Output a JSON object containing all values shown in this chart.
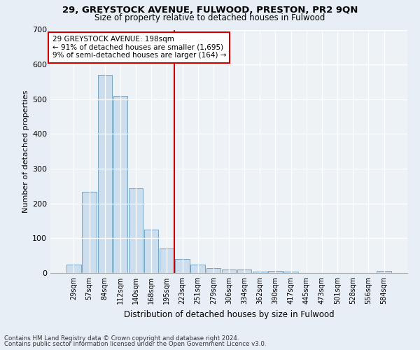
{
  "title1": "29, GREYSTOCK AVENUE, FULWOOD, PRESTON, PR2 9QN",
  "title2": "Size of property relative to detached houses in Fulwood",
  "xlabel": "Distribution of detached houses by size in Fulwood",
  "ylabel": "Number of detached properties",
  "categories": [
    "29sqm",
    "57sqm",
    "84sqm",
    "112sqm",
    "140sqm",
    "168sqm",
    "195sqm",
    "223sqm",
    "251sqm",
    "279sqm",
    "306sqm",
    "334sqm",
    "362sqm",
    "390sqm",
    "417sqm",
    "445sqm",
    "473sqm",
    "501sqm",
    "528sqm",
    "556sqm",
    "584sqm"
  ],
  "values": [
    25,
    233,
    570,
    510,
    243,
    125,
    70,
    40,
    25,
    14,
    10,
    11,
    4,
    6,
    5,
    0,
    0,
    0,
    0,
    0,
    7
  ],
  "bar_color": "#ccdded",
  "bar_edge_color": "#6699bb",
  "vline_x_index": 6,
  "vline_color": "#cc0000",
  "annotation_text": "29 GREYSTOCK AVENUE: 198sqm\n← 91% of detached houses are smaller (1,695)\n9% of semi-detached houses are larger (164) →",
  "annotation_box_color": "#cc0000",
  "ylim": [
    0,
    700
  ],
  "yticks": [
    0,
    100,
    200,
    300,
    400,
    500,
    600,
    700
  ],
  "footnote1": "Contains HM Land Registry data © Crown copyright and database right 2024.",
  "footnote2": "Contains public sector information licensed under the Open Government Licence v3.0.",
  "bg_color": "#e8eef5",
  "plot_bg_color": "#edf2f7"
}
